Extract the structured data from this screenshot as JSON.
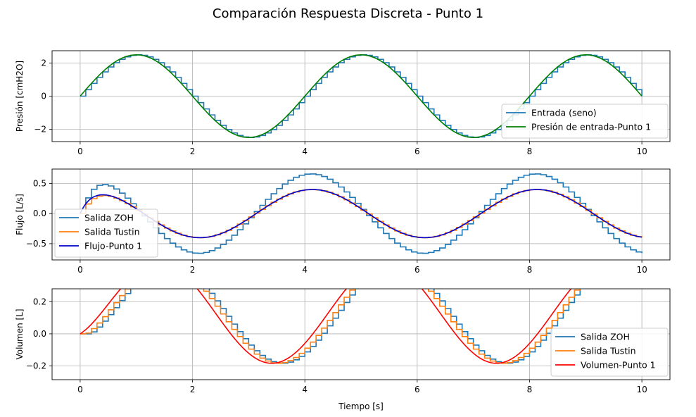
{
  "figure": {
    "title": "Comparación Respuesta Discreta - Punto 1"
  },
  "chart_data": [
    {
      "type": "line",
      "ylabel": "Presión [cmH2O]",
      "xlabel": "",
      "xlim": [
        -0.5,
        10.5
      ],
      "ylim": [
        -2.75,
        2.75
      ],
      "xticks": [
        0,
        2,
        4,
        6,
        8,
        10
      ],
      "yticks": [
        -2,
        0,
        2
      ],
      "grid": true,
      "legend_position": "lower-right",
      "series": [
        {
          "name": "Entrada (seno)",
          "color": "#1f77b4",
          "style": "steps",
          "dt": 0.1,
          "amplitude": 2.5,
          "period": 4,
          "kind": "sin"
        },
        {
          "name": "Presión de entrada-Punto 1",
          "color": "#008000",
          "style": "line",
          "amplitude": 2.5,
          "period": 4,
          "kind": "sin"
        }
      ]
    },
    {
      "type": "line",
      "ylabel": "Flujo [L/s]",
      "xlabel": "",
      "xlim": [
        -0.5,
        10.5
      ],
      "ylim": [
        -0.77,
        0.74
      ],
      "xticks": [
        0,
        2,
        4,
        6,
        8,
        10
      ],
      "yticks": [
        -0.5,
        0.0,
        0.5
      ],
      "grid": true,
      "legend_position": "lower-left",
      "series": [
        {
          "name": "Salida ZOH",
          "color": "#1f77b4",
          "style": "steps",
          "dt": 0.1,
          "amplitude": 0.66,
          "period": 4,
          "phase_deg": 84,
          "tau": 0.2,
          "kind": "response"
        },
        {
          "name": "Salida Tustin",
          "color": "#ff7f0e",
          "style": "steps",
          "dt": 0.1,
          "amplitude": 0.4,
          "period": 4,
          "phase_deg": 82,
          "tau": 0.2,
          "kind": "response"
        },
        {
          "name": "Flujo-Punto 1",
          "color": "#0000cd",
          "style": "line",
          "amplitude": 0.4,
          "period": 4,
          "phase_deg": 78,
          "tau": 0.2,
          "kind": "response"
        }
      ]
    },
    {
      "type": "line",
      "ylabel": "Volumen [L]",
      "xlabel": "Tiempo [s]",
      "xlim": [
        -0.5,
        10.5
      ],
      "ylim": [
        -0.285,
        0.28
      ],
      "xticks": [
        0,
        2,
        4,
        6,
        8,
        10
      ],
      "yticks": [
        -0.2,
        0.0,
        0.2
      ],
      "grid": true,
      "legend_position": "lower-right",
      "series": [
        {
          "name": "Salida ZOH",
          "color": "#1f77b4",
          "style": "steps",
          "dt": 0.1,
          "amplitude": 0.255,
          "period": 4,
          "phase_deg": 0,
          "delay": 0.15,
          "kind": "volume"
        },
        {
          "name": "Salida Tustin",
          "color": "#ff7f0e",
          "style": "steps",
          "dt": 0.1,
          "amplitude": 0.255,
          "period": 4,
          "phase_deg": 0,
          "delay": 0.08,
          "kind": "volume"
        },
        {
          "name": "Volumen-Punto 1",
          "color": "#ff0000",
          "style": "line",
          "amplitude": 0.255,
          "period": 4,
          "phase_deg": 0,
          "delay": 0,
          "kind": "volume"
        }
      ]
    }
  ]
}
